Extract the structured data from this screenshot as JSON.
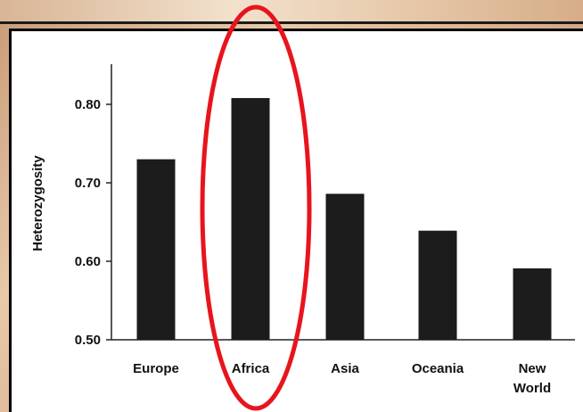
{
  "chart_data": {
    "type": "bar",
    "categories": [
      [
        "Europe"
      ],
      [
        "Africa"
      ],
      [
        "Asia"
      ],
      [
        "Oceania"
      ],
      [
        "New",
        "World"
      ]
    ],
    "values": [
      0.73,
      0.808,
      0.686,
      0.639,
      0.591
    ],
    "ylabel": "Heterozygosity",
    "ylim": [
      0.5,
      0.85
    ],
    "yticks": [
      "0.50",
      "0.60",
      "0.70",
      "0.80"
    ],
    "ytick_values": [
      0.5,
      0.6,
      0.7,
      0.8
    ],
    "bar_color": "#1c1c1c",
    "highlight": {
      "category": "Africa",
      "shape": "ellipse",
      "color": "#e8141c"
    }
  }
}
